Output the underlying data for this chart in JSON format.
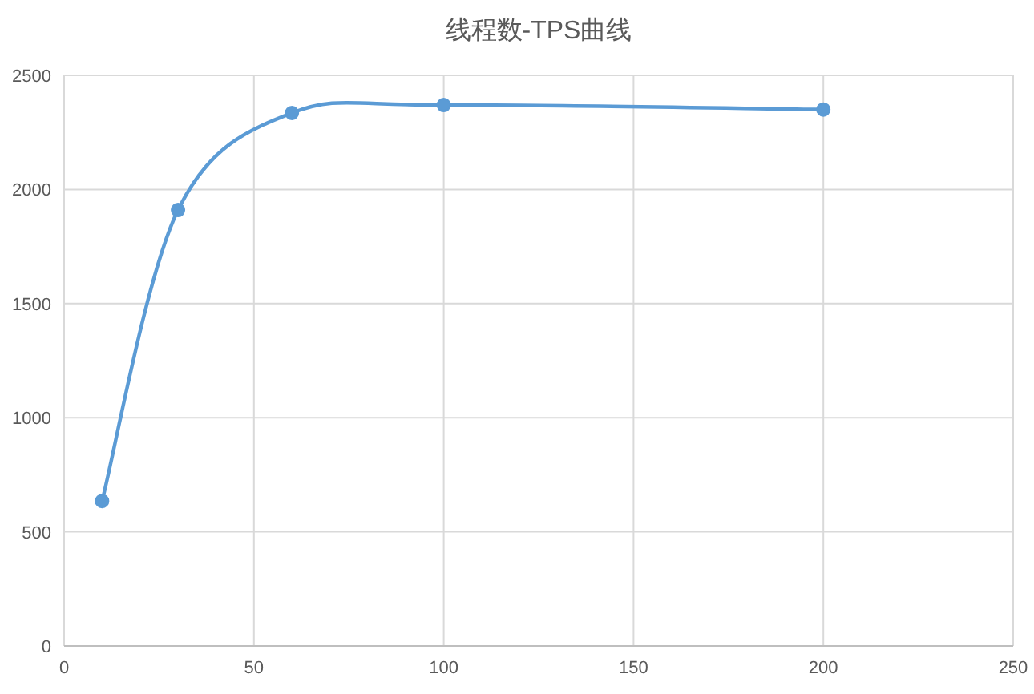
{
  "chart_data": {
    "type": "line",
    "title": "线程数-TPS曲线",
    "x": [
      10,
      30,
      60,
      100,
      200
    ],
    "series": [
      {
        "color": "#5b9bd5",
        "values": [
          635,
          1910,
          2335,
          2370,
          2350
        ]
      }
    ],
    "xlim": [
      0,
      250
    ],
    "xticks": [
      0,
      50,
      100,
      150,
      200,
      250
    ],
    "ylim": [
      0,
      2500
    ],
    "yticks": [
      0,
      500,
      1000,
      1500,
      2000,
      2500
    ],
    "grid": true,
    "marker": "circle",
    "line_style": "solid"
  }
}
